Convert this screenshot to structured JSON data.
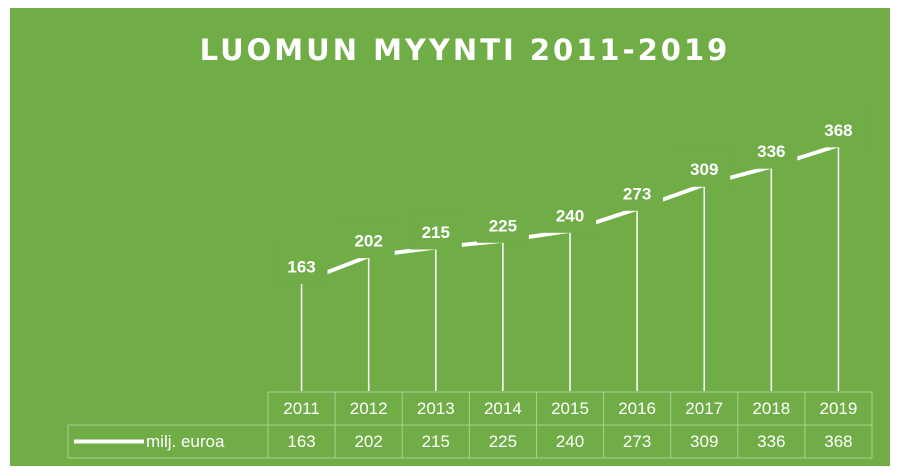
{
  "chart_data": {
    "type": "line",
    "title": "LUOMUN MYYNTI 2011-2019",
    "categories": [
      "2011",
      "2012",
      "2013",
      "2014",
      "2015",
      "2016",
      "2017",
      "2018",
      "2019"
    ],
    "series": [
      {
        "name": "milj. euroa",
        "color": "#ffffff",
        "values": [
          163,
          202,
          215,
          225,
          240,
          273,
          309,
          336,
          368
        ]
      }
    ],
    "ylim": [
      0,
      400
    ],
    "drop_lines": true,
    "data_labels": true,
    "data_table": true,
    "background": "#70ad47"
  }
}
